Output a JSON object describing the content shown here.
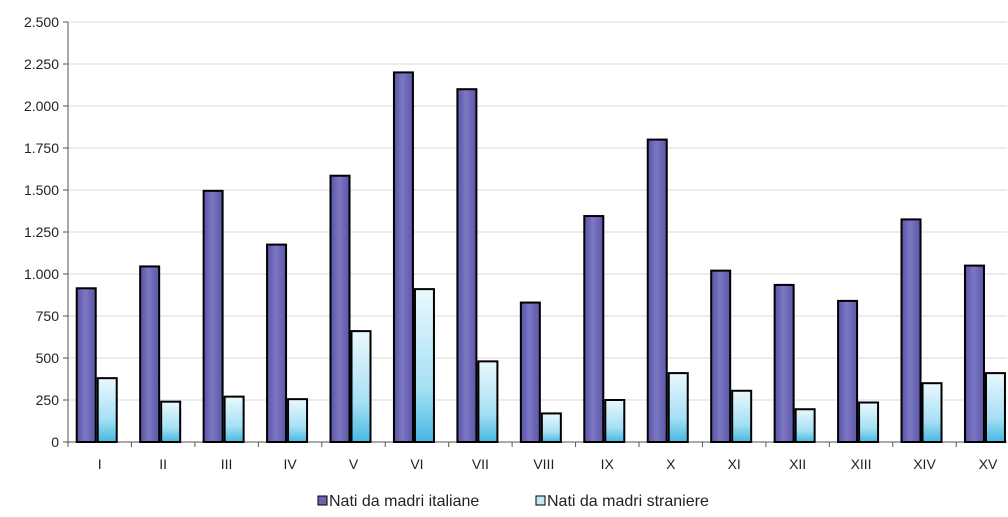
{
  "chart_data": {
    "type": "bar",
    "title": "",
    "xlabel": "",
    "ylabel": "",
    "ylim": [
      0,
      2500
    ],
    "yticks": [
      0,
      250,
      500,
      750,
      1000,
      1250,
      1500,
      1750,
      2000,
      2250,
      2500
    ],
    "ytick_labels": [
      "0",
      "250",
      "500",
      "750",
      "1.000",
      "1.250",
      "1.500",
      "1.750",
      "2.000",
      "2.250",
      "2.500"
    ],
    "grid": true,
    "legend_position": "bottom",
    "categories": [
      "I",
      "II",
      "III",
      "IV",
      "V",
      "VI",
      "VII",
      "VIII",
      "IX",
      "X",
      "XI",
      "XII",
      "XIII",
      "XIV",
      "XV"
    ],
    "series": [
      {
        "name": "Nati da madri italiane",
        "color": "#6a66b2",
        "values": [
          915,
          1045,
          1495,
          1175,
          1585,
          2200,
          2100,
          830,
          1345,
          1800,
          1020,
          935,
          840,
          1325,
          1050
        ]
      },
      {
        "name": "Nati da madri straniere",
        "color": "#bfe9f7",
        "values": [
          380,
          240,
          270,
          255,
          660,
          910,
          480,
          170,
          250,
          410,
          305,
          195,
          235,
          350,
          410
        ]
      }
    ]
  }
}
